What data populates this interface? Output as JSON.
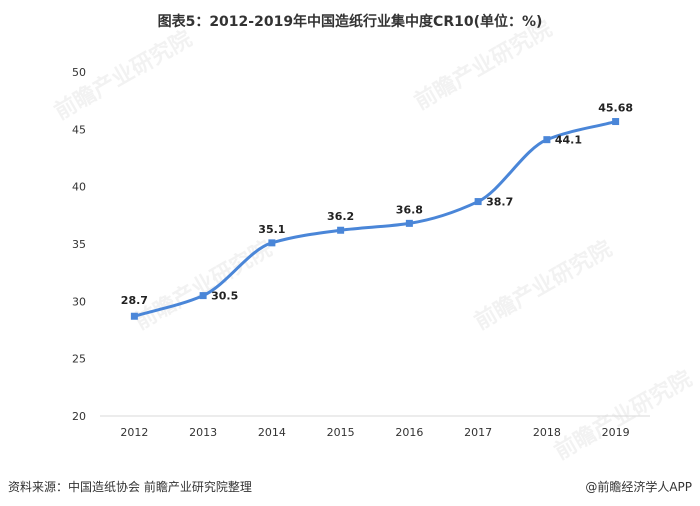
{
  "title": "图表5：2012-2019年中国造纸行业集中度CR10(单位：%)",
  "footer": {
    "source": "资料来源：中国造纸协会 前瞻产业研究院整理",
    "brand": "@前瞻经济学人APP"
  },
  "watermark": {
    "text": "前瞻产业研究院"
  },
  "colors": {
    "line": "#4a86d8",
    "marker": "#4a86d8",
    "axis": "#d9d9d9"
  },
  "chart_data": {
    "type": "line",
    "title": "图表5：2012-2019年中国造纸行业集中度CR10(单位：%)",
    "xlabel": "",
    "ylabel": "",
    "categories": [
      "2012",
      "2013",
      "2014",
      "2015",
      "2016",
      "2017",
      "2018",
      "2019"
    ],
    "series": [
      {
        "values": [
          28.7,
          30.5,
          35.1,
          36.2,
          36.8,
          38.7,
          44.1,
          45.68
        ],
        "labels": [
          "28.7",
          "30.5",
          "35.1",
          "36.2",
          "36.8",
          "38.7",
          "44.1",
          "45.68"
        ]
      }
    ],
    "ylim": [
      20,
      50
    ],
    "yticks": [
      "20",
      "25",
      "30",
      "35",
      "40",
      "45",
      "50"
    ],
    "grid": false,
    "smooth": true,
    "legend": "none"
  }
}
